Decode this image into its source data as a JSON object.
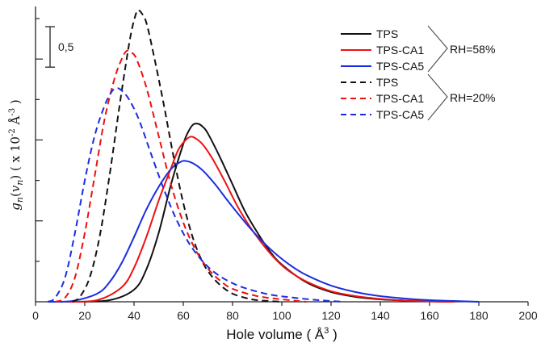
{
  "chart_data": {
    "type": "line",
    "xlabel": "Hole volume",
    "xlabel_unit": "Å",
    "xlabel_unit_exp": "3",
    "ylabel": {
      "func": "g",
      "func_sub": "n",
      "arg": "v",
      "arg_sub": "n",
      "multiplier": "x 10",
      "multiplier_exp": "-2",
      "unit": "Å",
      "unit_exp": "-3"
    },
    "xlim": [
      0,
      200
    ],
    "ylim": [
      0,
      3.65
    ],
    "x_ticks": [
      0,
      20,
      40,
      60,
      80,
      100,
      120,
      140,
      160,
      180,
      200
    ],
    "y_ticks_major": [
      1,
      2,
      3
    ],
    "y_ticks_minor_step": 0.5,
    "scale_bar": {
      "label": "0,5",
      "length": 0.5
    },
    "groups": [
      {
        "label": "RH=58%",
        "members": [
          "TPS",
          "TPS-CA1",
          "TPS-CA5"
        ]
      },
      {
        "label": "RH=20%",
        "members": [
          "TPS",
          "TPS-CA1",
          "TPS-CA5"
        ]
      }
    ],
    "series": [
      {
        "name": "TPS",
        "group": "RH=58%",
        "style": "solid",
        "color": "#111111",
        "points": [
          [
            15,
            0
          ],
          [
            30,
            0.02
          ],
          [
            40,
            0.15
          ],
          [
            45,
            0.4
          ],
          [
            50,
            0.85
          ],
          [
            55,
            1.45
          ],
          [
            60,
            1.95
          ],
          [
            62,
            2.1
          ],
          [
            64,
            2.19
          ],
          [
            66,
            2.2
          ],
          [
            68,
            2.16
          ],
          [
            70,
            2.08
          ],
          [
            75,
            1.78
          ],
          [
            80,
            1.45
          ],
          [
            85,
            1.12
          ],
          [
            90,
            0.86
          ],
          [
            95,
            0.63
          ],
          [
            100,
            0.46
          ],
          [
            110,
            0.24
          ],
          [
            120,
            0.12
          ],
          [
            130,
            0.06
          ],
          [
            140,
            0.03
          ],
          [
            150,
            0.015
          ],
          [
            160,
            0.005
          ],
          [
            170,
            0
          ]
        ]
      },
      {
        "name": "TPS-CA1",
        "group": "RH=58%",
        "style": "solid",
        "color": "#ee1111",
        "points": [
          [
            12,
            0
          ],
          [
            25,
            0.02
          ],
          [
            35,
            0.18
          ],
          [
            40,
            0.42
          ],
          [
            45,
            0.8
          ],
          [
            50,
            1.25
          ],
          [
            55,
            1.65
          ],
          [
            58,
            1.88
          ],
          [
            61,
            2.0
          ],
          [
            63,
            2.04
          ],
          [
            65,
            2.02
          ],
          [
            68,
            1.94
          ],
          [
            72,
            1.76
          ],
          [
            77,
            1.48
          ],
          [
            82,
            1.18
          ],
          [
            87,
            0.93
          ],
          [
            92,
            0.72
          ],
          [
            97,
            0.54
          ],
          [
            102,
            0.4
          ],
          [
            110,
            0.25
          ],
          [
            120,
            0.13
          ],
          [
            130,
            0.07
          ],
          [
            140,
            0.035
          ],
          [
            150,
            0.015
          ],
          [
            160,
            0.005
          ],
          [
            170,
            0
          ]
        ]
      },
      {
        "name": "TPS-CA5",
        "group": "RH=58%",
        "style": "solid",
        "color": "#1a2ee0",
        "points": [
          [
            5,
            0
          ],
          [
            15,
            0.01
          ],
          [
            25,
            0.1
          ],
          [
            30,
            0.24
          ],
          [
            35,
            0.48
          ],
          [
            40,
            0.8
          ],
          [
            45,
            1.14
          ],
          [
            50,
            1.42
          ],
          [
            55,
            1.64
          ],
          [
            59,
            1.73
          ],
          [
            61,
            1.74
          ],
          [
            64,
            1.71
          ],
          [
            68,
            1.62
          ],
          [
            73,
            1.45
          ],
          [
            78,
            1.25
          ],
          [
            83,
            1.06
          ],
          [
            88,
            0.88
          ],
          [
            93,
            0.72
          ],
          [
            98,
            0.58
          ],
          [
            104,
            0.44
          ],
          [
            110,
            0.33
          ],
          [
            120,
            0.2
          ],
          [
            130,
            0.12
          ],
          [
            140,
            0.07
          ],
          [
            150,
            0.04
          ],
          [
            160,
            0.02
          ],
          [
            170,
            0.01
          ],
          [
            180,
            0
          ]
        ]
      },
      {
        "name": "TPS",
        "group": "RH=20%",
        "style": "dashed",
        "color": "#111111",
        "points": [
          [
            15,
            0
          ],
          [
            18,
            0.06
          ],
          [
            22,
            0.3
          ],
          [
            26,
            0.8
          ],
          [
            30,
            1.55
          ],
          [
            34,
            2.4
          ],
          [
            37,
            3.0
          ],
          [
            39,
            3.35
          ],
          [
            41,
            3.58
          ],
          [
            42,
            3.6
          ],
          [
            43,
            3.57
          ],
          [
            45,
            3.45
          ],
          [
            48,
            3.05
          ],
          [
            52,
            2.45
          ],
          [
            56,
            1.8
          ],
          [
            60,
            1.22
          ],
          [
            64,
            0.78
          ],
          [
            68,
            0.48
          ],
          [
            72,
            0.3
          ],
          [
            76,
            0.18
          ],
          [
            80,
            0.1
          ],
          [
            85,
            0.05
          ],
          [
            90,
            0.02
          ],
          [
            100,
            0
          ]
        ]
      },
      {
        "name": "TPS-CA1",
        "group": "RH=20%",
        "style": "dashed",
        "color": "#ee1111",
        "points": [
          [
            8,
            0
          ],
          [
            12,
            0.05
          ],
          [
            16,
            0.3
          ],
          [
            20,
            0.85
          ],
          [
            24,
            1.55
          ],
          [
            28,
            2.25
          ],
          [
            32,
            2.75
          ],
          [
            35,
            3.0
          ],
          [
            37,
            3.1
          ],
          [
            39,
            3.08
          ],
          [
            41,
            3.0
          ],
          [
            45,
            2.65
          ],
          [
            50,
            2.05
          ],
          [
            55,
            1.45
          ],
          [
            60,
            0.98
          ],
          [
            65,
            0.64
          ],
          [
            70,
            0.41
          ],
          [
            75,
            0.26
          ],
          [
            80,
            0.16
          ],
          [
            90,
            0.07
          ],
          [
            100,
            0.03
          ],
          [
            110,
            0
          ]
        ]
      },
      {
        "name": "TPS-CA5",
        "group": "RH=20%",
        "style": "dashed",
        "color": "#1a2ee0",
        "points": [
          [
            5,
            0
          ],
          [
            8,
            0.05
          ],
          [
            12,
            0.3
          ],
          [
            16,
            0.85
          ],
          [
            20,
            1.5
          ],
          [
            24,
            2.05
          ],
          [
            28,
            2.42
          ],
          [
            31,
            2.6
          ],
          [
            33,
            2.64
          ],
          [
            35,
            2.61
          ],
          [
            38,
            2.5
          ],
          [
            42,
            2.25
          ],
          [
            47,
            1.82
          ],
          [
            52,
            1.4
          ],
          [
            57,
            1.03
          ],
          [
            62,
            0.74
          ],
          [
            67,
            0.53
          ],
          [
            72,
            0.38
          ],
          [
            78,
            0.26
          ],
          [
            85,
            0.17
          ],
          [
            95,
            0.09
          ],
          [
            105,
            0.05
          ],
          [
            115,
            0.02
          ],
          [
            125,
            0
          ]
        ]
      }
    ]
  }
}
